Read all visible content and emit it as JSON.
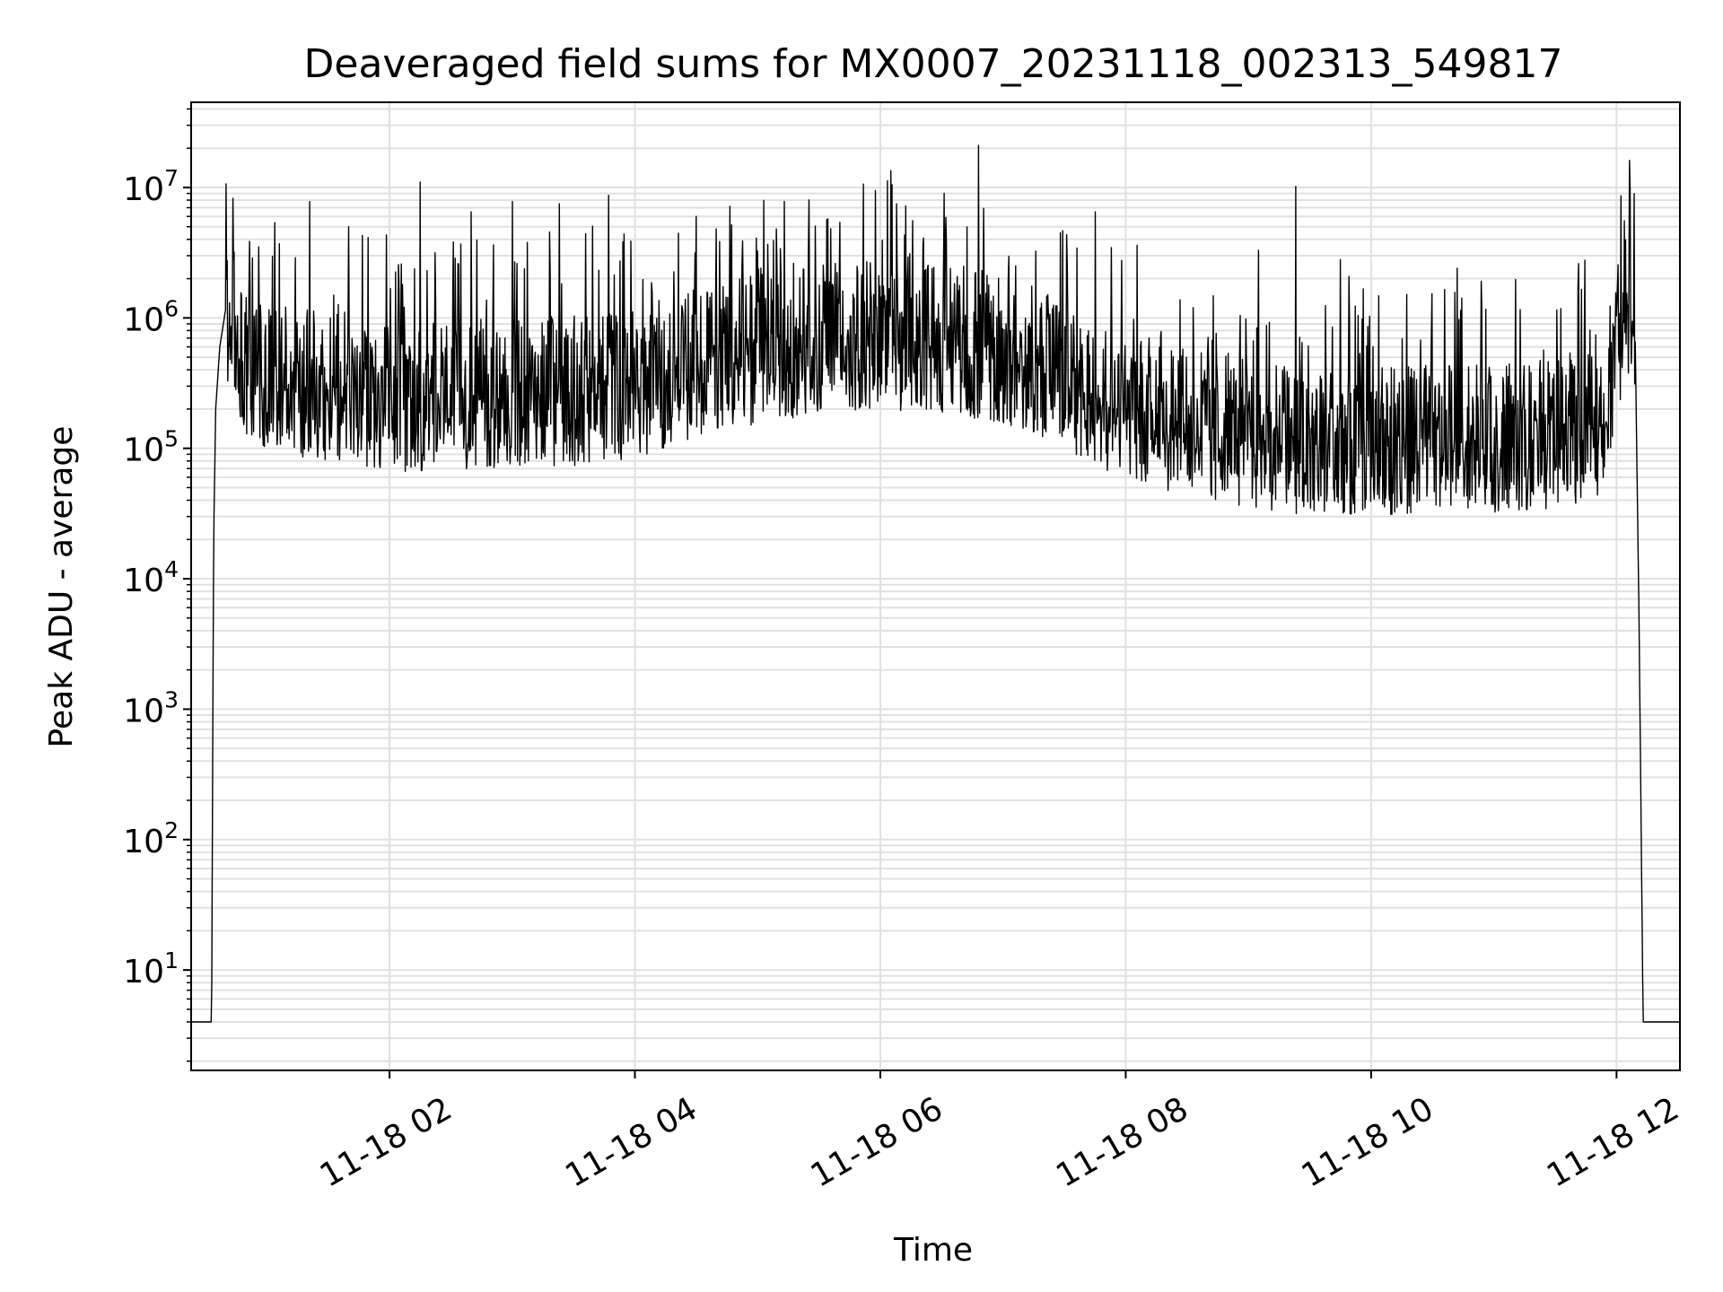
{
  "chart_data": {
    "type": "line",
    "title": "Deaveraged field sums for MX0007_20231118_002313_549817",
    "xlabel": "Time",
    "ylabel": "Peak ADU - average",
    "yscale": "log",
    "grid": true,
    "legend": "none",
    "line_color": "#000000",
    "xlim": [
      "2023-11-18 00:23",
      "2023-11-18 12:31"
    ],
    "ylim": [
      1.7,
      45000000
    ],
    "x_ticks": [
      {
        "value": "2023-11-18 02:00",
        "label": "11-18 02"
      },
      {
        "value": "2023-11-18 04:00",
        "label": "11-18 04"
      },
      {
        "value": "2023-11-18 06:00",
        "label": "11-18 06"
      },
      {
        "value": "2023-11-18 08:00",
        "label": "11-18 08"
      },
      {
        "value": "2023-11-18 10:00",
        "label": "11-18 10"
      },
      {
        "value": "2023-11-18 12:00",
        "label": "11-18 12"
      }
    ],
    "y_ticks": [
      {
        "value": 10,
        "base": "10",
        "exp": "1"
      },
      {
        "value": 100,
        "base": "10",
        "exp": "2"
      },
      {
        "value": 1000,
        "base": "10",
        "exp": "3"
      },
      {
        "value": 10000,
        "base": "10",
        "exp": "4"
      },
      {
        "value": 100000,
        "base": "10",
        "exp": "5"
      },
      {
        "value": 1000000,
        "base": "10",
        "exp": "6"
      },
      {
        "value": 10000000,
        "base": "10",
        "exp": "7"
      }
    ],
    "series": [
      {
        "x": [
          "2023-11-18 00:23",
          "2023-11-18 00:33",
          "2023-11-18 00:34",
          "2023-11-18 00:35",
          "2023-11-18 00:37",
          "2023-11-18 00:40",
          "2023-11-18 00:43",
          "2023-11-18 00:46",
          "2023-11-18 00:50",
          "2023-11-18 01:00",
          "2023-11-18 01:15",
          "2023-11-18 01:30",
          "2023-11-18 01:45",
          "2023-11-18 02:00",
          "2023-11-18 02:30",
          "2023-11-18 03:00",
          "2023-11-18 03:30",
          "2023-11-18 04:00",
          "2023-11-18 04:30",
          "2023-11-18 05:00",
          "2023-11-18 05:30",
          "2023-11-18 06:00",
          "2023-11-18 06:30",
          "2023-11-18 07:00",
          "2023-11-18 07:30",
          "2023-11-18 08:00",
          "2023-11-18 08:30",
          "2023-11-18 09:00",
          "2023-11-18 09:30",
          "2023-11-18 10:00",
          "2023-11-18 10:30",
          "2023-11-18 11:00",
          "2023-11-18 11:30",
          "2023-11-18 11:52",
          "2023-11-18 11:57",
          "2023-11-18 12:01",
          "2023-11-18 12:05",
          "2023-11-18 12:09",
          "2023-11-18 12:11",
          "2023-11-18 12:12",
          "2023-11-18 12:13",
          "2023-11-18 12:31"
        ],
        "y": [
          4,
          4,
          20000,
          200000,
          600000,
          1200000,
          1000000,
          600000,
          450000,
          350000,
          300000,
          280000,
          250000,
          230000,
          240000,
          250000,
          260000,
          300000,
          420000,
          550000,
          650000,
          700000,
          650000,
          550000,
          350000,
          200000,
          150000,
          120000,
          110000,
          105000,
          110000,
          115000,
          120000,
          150000,
          350000,
          600000,
          1200000,
          1000000,
          5000,
          150,
          4,
          4
        ]
      }
    ],
    "spikes": [
      {
        "x": "2023-11-18 00:56",
        "y": 3500000
      },
      {
        "x": "2023-11-18 01:21",
        "y": 7800000
      },
      {
        "x": "2023-11-18 01:40",
        "y": 5000000
      },
      {
        "x": "2023-11-18 02:15",
        "y": 11000000
      },
      {
        "x": "2023-11-18 02:40",
        "y": 6500000
      },
      {
        "x": "2023-11-18 03:00",
        "y": 7800000
      },
      {
        "x": "2023-11-18 03:23",
        "y": 7500000
      },
      {
        "x": "2023-11-18 03:47",
        "y": 8700000
      },
      {
        "x": "2023-11-18 04:30",
        "y": 6000000
      },
      {
        "x": "2023-11-18 05:13",
        "y": 7800000
      },
      {
        "x": "2023-11-18 06:08",
        "y": 7500000
      },
      {
        "x": "2023-11-18 06:48",
        "y": 21000000
      },
      {
        "x": "2023-11-18 07:28",
        "y": 4500000
      },
      {
        "x": "2023-11-18 07:45",
        "y": 6500000
      },
      {
        "x": "2023-11-18 08:33",
        "y": 1200000
      },
      {
        "x": "2023-11-18 09:05",
        "y": 3300000
      },
      {
        "x": "2023-11-18 09:23",
        "y": 10200000
      },
      {
        "x": "2023-11-18 09:45",
        "y": 2800000
      },
      {
        "x": "2023-11-18 10:42",
        "y": 2400000
      }
    ]
  }
}
